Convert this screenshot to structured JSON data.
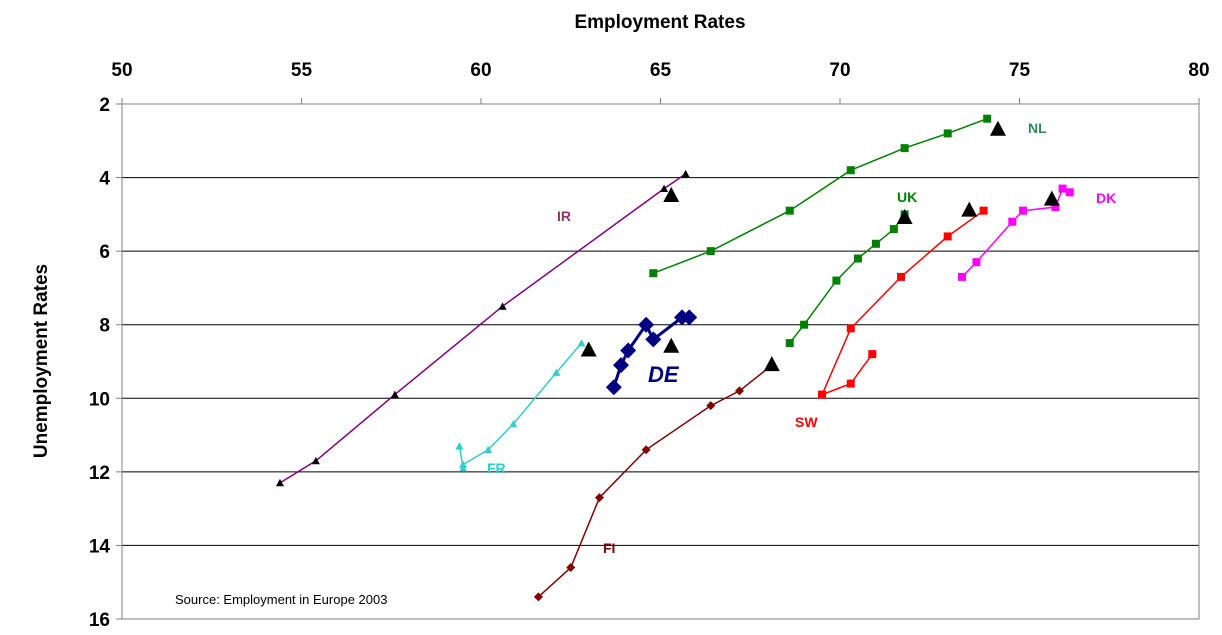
{
  "chart_data": {
    "type": "scatter",
    "title": "Employment Rates",
    "xlabel": "",
    "ylabel": "Unemployment Rates",
    "xlim": [
      50,
      80
    ],
    "ylim": [
      2,
      16
    ],
    "y_reversed": true,
    "x_axis_position": "top",
    "x_ticks": [
      "50",
      "55",
      "60",
      "65",
      "70",
      "75",
      "80"
    ],
    "y_ticks": [
      "2",
      "4",
      "6",
      "8",
      "10",
      "12",
      "14",
      "16"
    ],
    "grid": "horizontal",
    "legend": "none",
    "source": "Source: Employment in Europe 2003",
    "series": [
      {
        "name": "NL",
        "color": "#2e8b57",
        "line_color": "#008000",
        "marker": "square",
        "points": [
          [
            64.8,
            6.6
          ],
          [
            66.4,
            6.0
          ],
          [
            68.6,
            4.9
          ],
          [
            70.3,
            3.8
          ],
          [
            71.8,
            3.2
          ],
          [
            73.0,
            2.8
          ],
          [
            74.1,
            2.4
          ]
        ],
        "highlight": [
          74.4,
          2.7
        ]
      },
      {
        "name": "UK",
        "color": "#008000",
        "line_color": "#008000",
        "marker": "square",
        "points": [
          [
            68.6,
            8.5
          ],
          [
            69.0,
            8.0
          ],
          [
            69.9,
            6.8
          ],
          [
            70.5,
            6.2
          ],
          [
            71.0,
            5.8
          ],
          [
            71.5,
            5.4
          ],
          [
            71.8,
            5.0
          ]
        ],
        "highlight": [
          71.8,
          5.1
        ]
      },
      {
        "name": "DK",
        "color": "#ff00ff",
        "line_color": "#ff00ff",
        "marker": "square",
        "points": [
          [
            73.4,
            6.7
          ],
          [
            73.8,
            6.3
          ],
          [
            74.8,
            5.2
          ],
          [
            75.1,
            4.9
          ],
          [
            76.0,
            4.8
          ],
          [
            76.2,
            4.3
          ],
          [
            76.4,
            4.4
          ]
        ],
        "highlight": [
          75.9,
          4.6
        ]
      },
      {
        "name": "SW",
        "color": "#ff0000",
        "line_color": "#ff0000",
        "marker": "square",
        "points": [
          [
            70.9,
            8.8
          ],
          [
            70.3,
            9.6
          ],
          [
            69.5,
            9.9
          ],
          [
            70.3,
            8.1
          ],
          [
            71.7,
            6.7
          ],
          [
            73.0,
            5.6
          ],
          [
            74.0,
            4.9
          ]
        ],
        "highlight": [
          73.6,
          4.9
        ]
      },
      {
        "name": "IR",
        "color": "#993366",
        "line_color": "#800080",
        "marker": "triangle",
        "points": [
          [
            54.4,
            12.3
          ],
          [
            55.4,
            11.7
          ],
          [
            57.6,
            9.9
          ],
          [
            60.6,
            7.5
          ],
          [
            65.1,
            4.3
          ],
          [
            65.7,
            3.9
          ]
        ],
        "highlight": [
          65.3,
          4.5
        ]
      },
      {
        "name": "DE",
        "color": "#000080",
        "line_color": "#000080",
        "marker": "diamond",
        "points": [
          [
            63.7,
            9.7
          ],
          [
            63.9,
            9.1
          ],
          [
            64.1,
            8.7
          ],
          [
            64.6,
            8.0
          ],
          [
            64.8,
            8.4
          ],
          [
            65.6,
            7.8
          ],
          [
            65.8,
            7.8
          ]
        ],
        "highlight": [
          65.3,
          8.6
        ]
      },
      {
        "name": "FR",
        "color": "#33cccc",
        "line_color": "#33cccc",
        "marker": "triangle",
        "points": [
          [
            59.4,
            11.3
          ],
          [
            59.5,
            11.9
          ],
          [
            59.5,
            11.8
          ],
          [
            60.2,
            11.4
          ],
          [
            60.9,
            10.7
          ],
          [
            62.1,
            9.3
          ],
          [
            62.8,
            8.5
          ]
        ],
        "highlight": [
          63.0,
          8.7
        ]
      },
      {
        "name": "FI",
        "color": "#800000",
        "line_color": "#800000",
        "marker": "diamond",
        "points": [
          [
            61.6,
            15.4
          ],
          [
            62.5,
            14.6
          ],
          [
            63.3,
            12.7
          ],
          [
            64.6,
            11.4
          ],
          [
            66.4,
            10.2
          ],
          [
            67.2,
            9.8
          ],
          [
            68.1,
            9.1
          ]
        ],
        "highlight": [
          68.1,
          9.1
        ]
      }
    ]
  }
}
